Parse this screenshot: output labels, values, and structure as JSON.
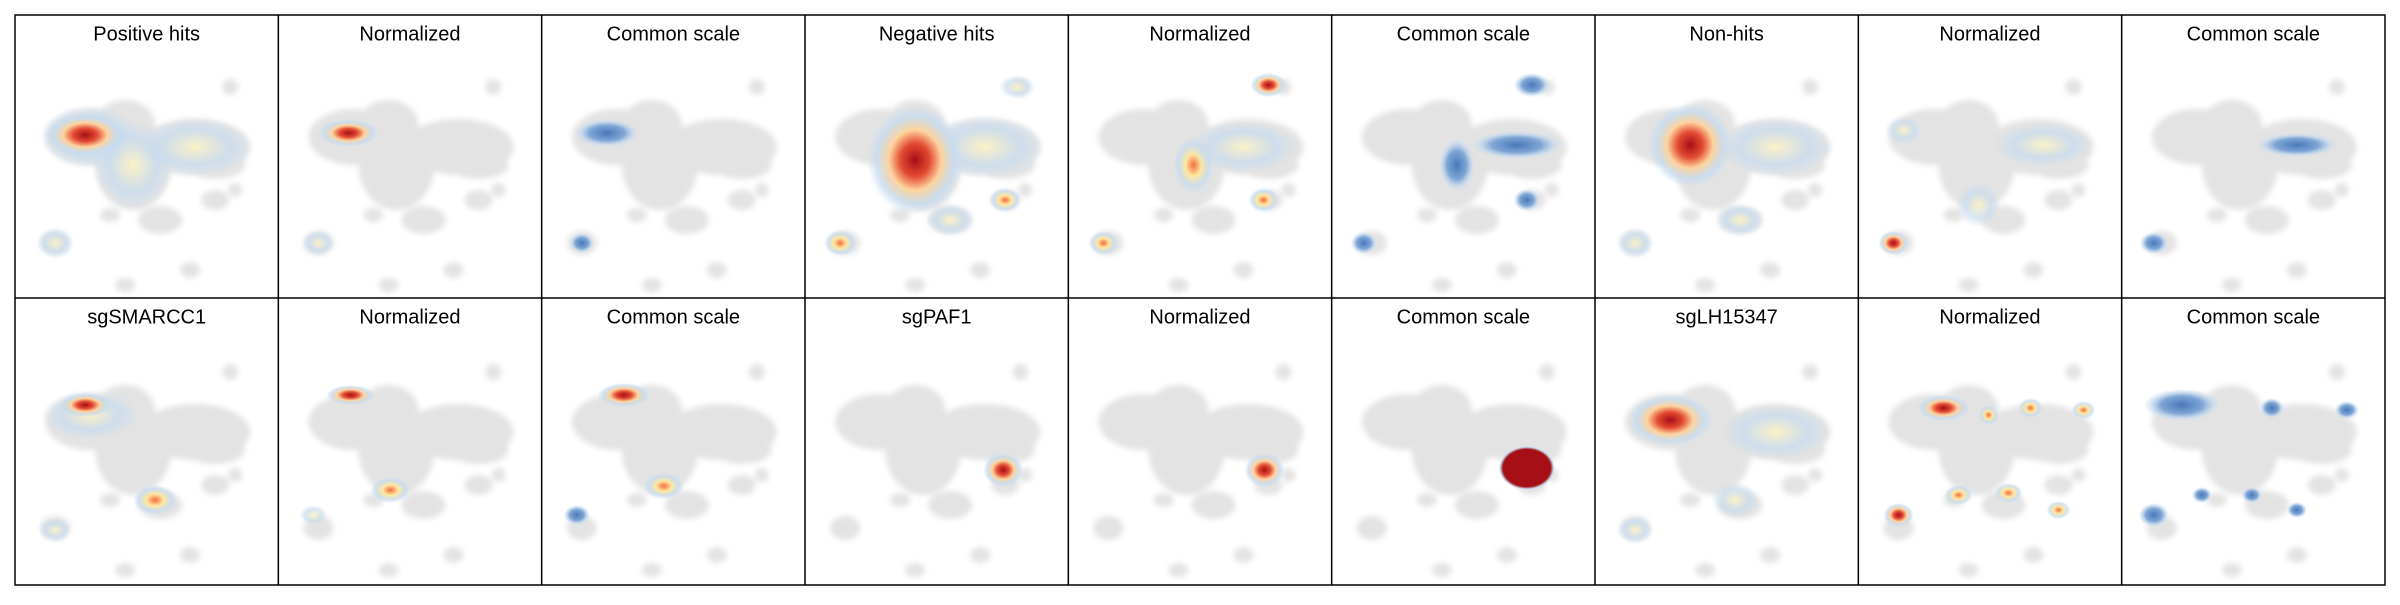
{
  "panels": [
    [
      "Positive hits",
      "Normalized",
      "Common scale",
      "Negative hits",
      "Normalized",
      "Common scale",
      "Non-hits",
      "Normalized",
      "Common scale"
    ],
    [
      "sgSMARCC1",
      "Normalized",
      "Common scale",
      "sgPAF1",
      "Normalized",
      "Common scale",
      "sgLH15347",
      "Normalized",
      "Common scale"
    ]
  ]
}
